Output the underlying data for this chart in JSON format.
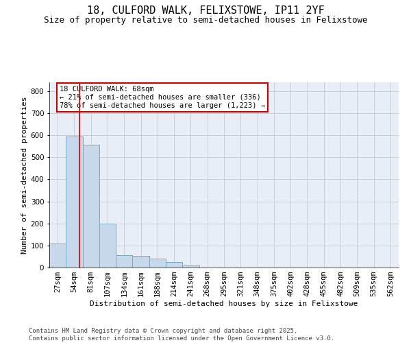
{
  "title_line1": "18, CULFORD WALK, FELIXSTOWE, IP11 2YF",
  "title_line2": "Size of property relative to semi-detached houses in Felixstowe",
  "xlabel": "Distribution of semi-detached houses by size in Felixstowe",
  "ylabel": "Number of semi-detached properties",
  "categories": [
    "27sqm",
    "54sqm",
    "81sqm",
    "107sqm",
    "134sqm",
    "161sqm",
    "188sqm",
    "214sqm",
    "241sqm",
    "268sqm",
    "295sqm",
    "321sqm",
    "348sqm",
    "375sqm",
    "402sqm",
    "428sqm",
    "455sqm",
    "482sqm",
    "509sqm",
    "535sqm",
    "562sqm"
  ],
  "values": [
    110,
    595,
    557,
    200,
    55,
    52,
    40,
    25,
    8,
    0,
    0,
    0,
    0,
    0,
    0,
    0,
    0,
    0,
    0,
    0,
    0
  ],
  "bar_color": "#c8d8eb",
  "bar_edge_color": "#7aaac8",
  "vline_x": 1.3,
  "vline_color": "#cc0000",
  "annotation_text": "18 CULFORD WALK: 68sqm\n← 21% of semi-detached houses are smaller (336)\n78% of semi-detached houses are larger (1,223) →",
  "annotation_box_color": "#cc0000",
  "ylim": [
    0,
    840
  ],
  "yticks": [
    0,
    100,
    200,
    300,
    400,
    500,
    600,
    700,
    800
  ],
  "grid_color": "#c8c8d8",
  "bg_color": "#e8eef5",
  "footer_line1": "Contains HM Land Registry data © Crown copyright and database right 2025.",
  "footer_line2": "Contains public sector information licensed under the Open Government Licence v3.0.",
  "title_fontsize": 11,
  "subtitle_fontsize": 9,
  "axis_fontsize": 8,
  "tick_fontsize": 7.5,
  "footer_fontsize": 6.5,
  "ann_fontsize": 7.5
}
